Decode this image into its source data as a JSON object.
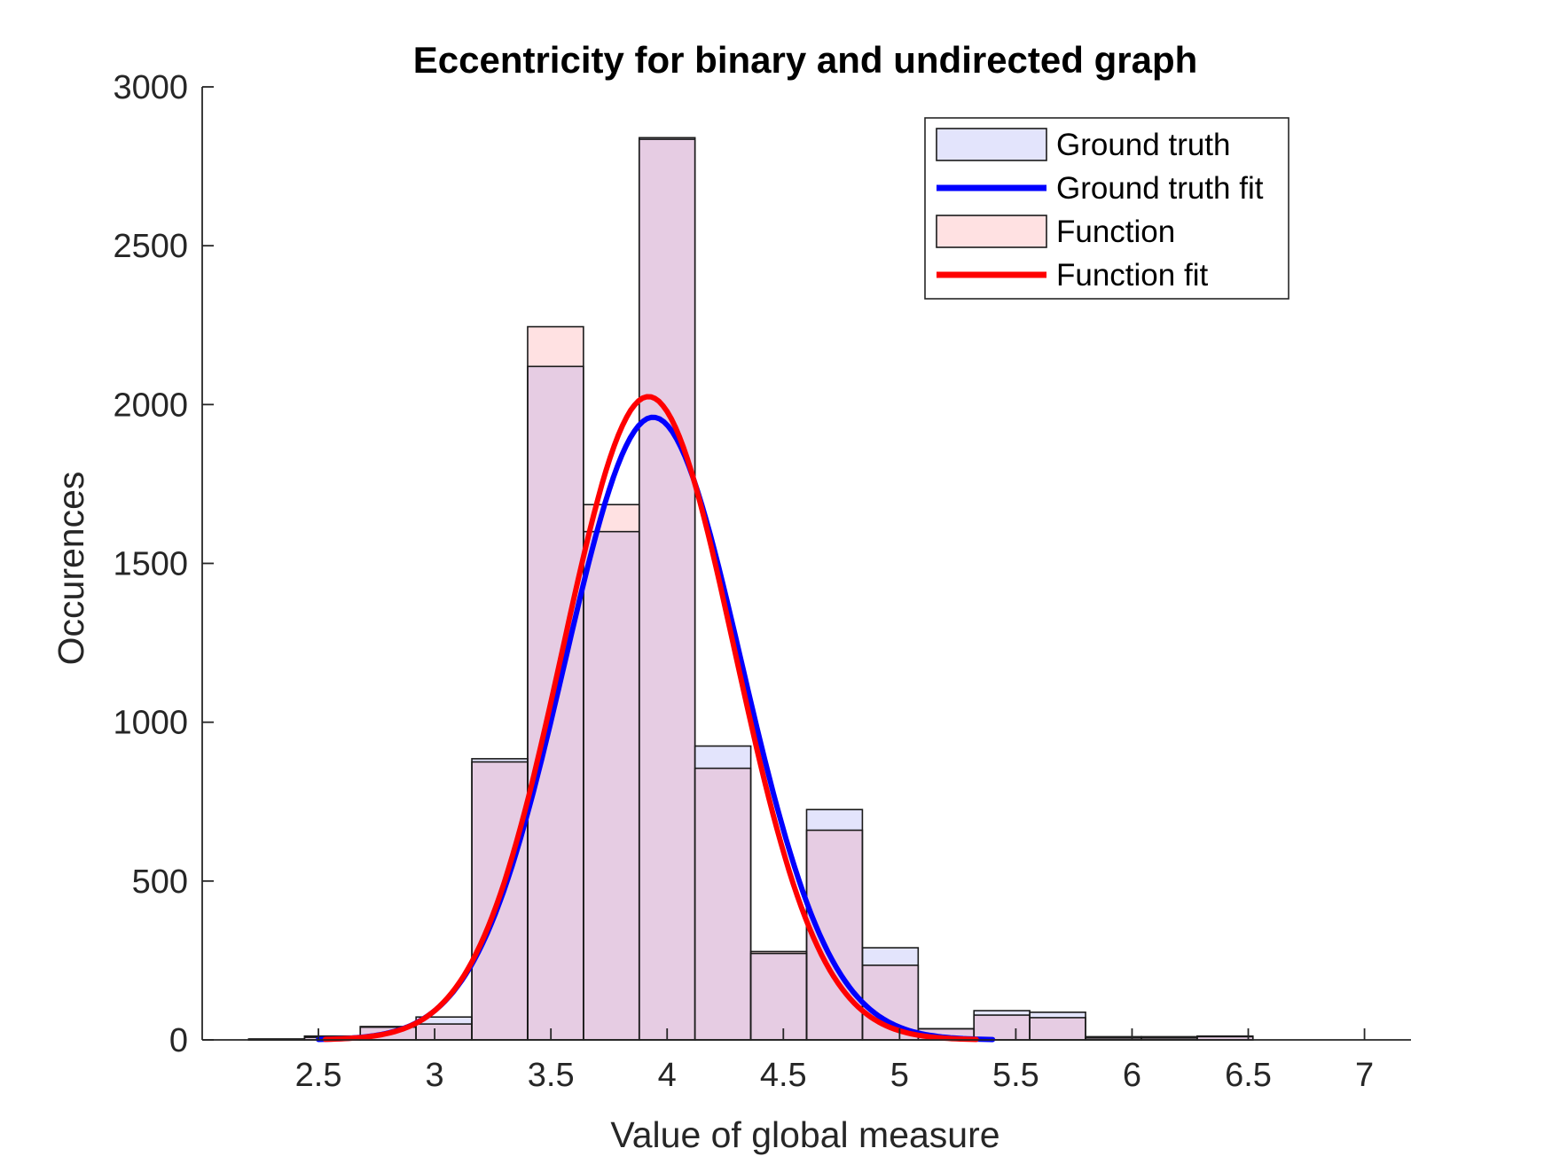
{
  "chart_data": {
    "type": "bar",
    "title": "Eccentricity for binary and undirected graph",
    "xlabel": "Value of global measure",
    "ylabel": "Occurences",
    "xlim": [
      2.0,
      7.2
    ],
    "ylim": [
      0,
      3000
    ],
    "xticks": [
      2.5,
      3,
      3.5,
      4,
      4.5,
      5,
      5.5,
      6,
      6.5,
      7
    ],
    "xtick_labels": [
      "2.5",
      "3",
      "3.5",
      "4",
      "4.5",
      "5",
      "5.5",
      "6",
      "6.5",
      "7"
    ],
    "yticks": [
      0,
      500,
      1000,
      1500,
      2000,
      2500,
      3000
    ],
    "ytick_labels": [
      "0",
      "500",
      "1000",
      "1500",
      "2000",
      "2500",
      "3000"
    ],
    "grid": false,
    "legend_position": "top-right",
    "bin_edges": [
      2.2,
      2.44,
      2.68,
      2.92,
      3.16,
      3.4,
      3.64,
      3.88,
      4.12,
      4.36,
      4.6,
      4.84,
      5.08,
      5.32,
      5.56,
      5.8,
      6.04,
      6.28,
      6.52
    ],
    "series": [
      {
        "name": "Ground truth",
        "kind": "histogram",
        "color": "#0000ff",
        "fill": "#e6e6fa",
        "values": [
          3,
          12,
          42,
          72,
          885,
          2120,
          1600,
          2840,
          925,
          272,
          725,
          290,
          35,
          92,
          87,
          10,
          10,
          12
        ]
      },
      {
        "name": "Ground truth fit",
        "kind": "fit",
        "color": "#0000ff",
        "mu": 3.94,
        "sigma": 0.38,
        "peak": 1960,
        "x_range": [
          2.5,
          5.4
        ]
      },
      {
        "name": "Function",
        "kind": "histogram",
        "color": "#ff0000",
        "fill": "#ffe4e4",
        "values": [
          2,
          8,
          40,
          50,
          875,
          2245,
          1685,
          2835,
          855,
          278,
          660,
          235,
          35,
          78,
          70,
          6,
          6,
          10
        ]
      },
      {
        "name": "Function fit",
        "kind": "fit",
        "color": "#ff0000",
        "mu": 3.92,
        "sigma": 0.37,
        "peak": 2025,
        "x_range": [
          2.53,
          5.33
        ]
      }
    ],
    "colors": {
      "overlap": "#e6cce3",
      "gt_fill": "#e3e4fc",
      "fn_fill": "#ffe1e2",
      "gt_line": "#0000ff",
      "fn_line": "#ff0000",
      "axis": "#262626"
    }
  }
}
